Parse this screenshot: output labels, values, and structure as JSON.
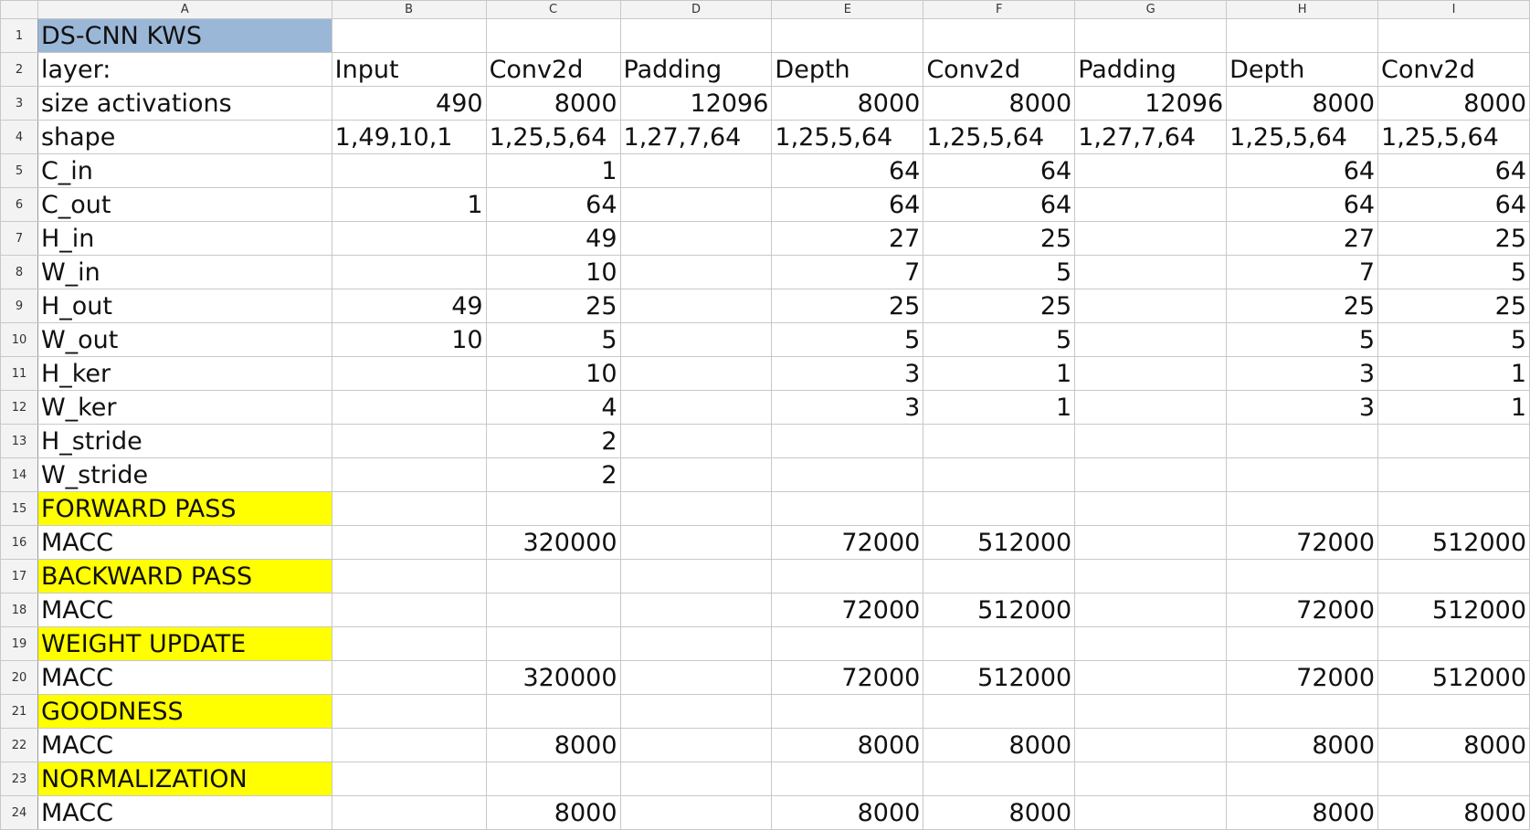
{
  "colors": {
    "title_bg": "#9bb7d8",
    "section_bg": "#ffff00",
    "header_bg": "#f3f3f3",
    "grid": "#c8c8c8"
  },
  "columns": [
    "A",
    "B",
    "C",
    "D",
    "E",
    "F",
    "G",
    "H",
    "I"
  ],
  "rows": [
    {
      "num": "1",
      "style": "title",
      "cells": [
        "DS-CNN KWS",
        "",
        "",
        "",
        "",
        "",
        "",
        "",
        ""
      ]
    },
    {
      "num": "2",
      "style": "",
      "cells": [
        "layer:",
        "Input",
        "Conv2d",
        "Padding",
        "Depth",
        "Conv2d",
        "Padding",
        "Depth",
        "Conv2d"
      ]
    },
    {
      "num": "3",
      "style": "",
      "cells": [
        "size activations",
        "490",
        "8000",
        "12096",
        "8000",
        "8000",
        "12096",
        "8000",
        "8000"
      ]
    },
    {
      "num": "4",
      "style": "",
      "cells": [
        "shape",
        "1,49,10,1",
        "1,25,5,64",
        "1,27,7,64",
        "1,25,5,64",
        "1,25,5,64",
        "1,27,7,64",
        "1,25,5,64",
        "1,25,5,64"
      ]
    },
    {
      "num": "5",
      "style": "",
      "cells": [
        "C_in",
        "",
        "1",
        "",
        "64",
        "64",
        "",
        "64",
        "64"
      ]
    },
    {
      "num": "6",
      "style": "",
      "cells": [
        "C_out",
        "1",
        "64",
        "",
        "64",
        "64",
        "",
        "64",
        "64"
      ]
    },
    {
      "num": "7",
      "style": "",
      "cells": [
        "H_in",
        "",
        "49",
        "",
        "27",
        "25",
        "",
        "27",
        "25"
      ]
    },
    {
      "num": "8",
      "style": "",
      "cells": [
        "W_in",
        "",
        "10",
        "",
        "7",
        "5",
        "",
        "7",
        "5"
      ]
    },
    {
      "num": "9",
      "style": "",
      "cells": [
        "H_out",
        "49",
        "25",
        "",
        "25",
        "25",
        "",
        "25",
        "25"
      ]
    },
    {
      "num": "10",
      "style": "",
      "cells": [
        "W_out",
        "10",
        "5",
        "",
        "5",
        "5",
        "",
        "5",
        "5"
      ]
    },
    {
      "num": "11",
      "style": "",
      "cells": [
        "H_ker",
        "",
        "10",
        "",
        "3",
        "1",
        "",
        "3",
        "1"
      ]
    },
    {
      "num": "12",
      "style": "",
      "cells": [
        "W_ker",
        "",
        "4",
        "",
        "3",
        "1",
        "",
        "3",
        "1"
      ]
    },
    {
      "num": "13",
      "style": "",
      "cells": [
        "H_stride",
        "",
        "2",
        "",
        "",
        "",
        "",
        "",
        ""
      ]
    },
    {
      "num": "14",
      "style": "",
      "cells": [
        "W_stride",
        "",
        "2",
        "",
        "",
        "",
        "",
        "",
        ""
      ]
    },
    {
      "num": "15",
      "style": "section",
      "cells": [
        "FORWARD PASS",
        "",
        "",
        "",
        "",
        "",
        "",
        "",
        ""
      ]
    },
    {
      "num": "16",
      "style": "",
      "cells": [
        "MACC",
        "",
        "320000",
        "",
        "72000",
        "512000",
        "",
        "72000",
        "512000"
      ]
    },
    {
      "num": "17",
      "style": "section",
      "cells": [
        "BACKWARD PASS",
        "",
        "",
        "",
        "",
        "",
        "",
        "",
        ""
      ]
    },
    {
      "num": "18",
      "style": "",
      "cells": [
        "MACC",
        "",
        "",
        "",
        "72000",
        "512000",
        "",
        "72000",
        "512000"
      ]
    },
    {
      "num": "19",
      "style": "section",
      "cells": [
        "WEIGHT UPDATE",
        "",
        "",
        "",
        "",
        "",
        "",
        "",
        ""
      ]
    },
    {
      "num": "20",
      "style": "",
      "cells": [
        "MACC",
        "",
        "320000",
        "",
        "72000",
        "512000",
        "",
        "72000",
        "512000"
      ]
    },
    {
      "num": "21",
      "style": "section",
      "cells": [
        "GOODNESS",
        "",
        "",
        "",
        "",
        "",
        "",
        "",
        ""
      ]
    },
    {
      "num": "22",
      "style": "",
      "cells": [
        "MACC",
        "",
        "8000",
        "",
        "8000",
        "8000",
        "",
        "8000",
        "8000"
      ]
    },
    {
      "num": "23",
      "style": "section",
      "cells": [
        "NORMALIZATION",
        "",
        "",
        "",
        "",
        "",
        "",
        "",
        ""
      ]
    },
    {
      "num": "24",
      "style": "",
      "cells": [
        "MACC",
        "",
        "8000",
        "",
        "8000",
        "8000",
        "",
        "8000",
        "8000"
      ]
    }
  ]
}
